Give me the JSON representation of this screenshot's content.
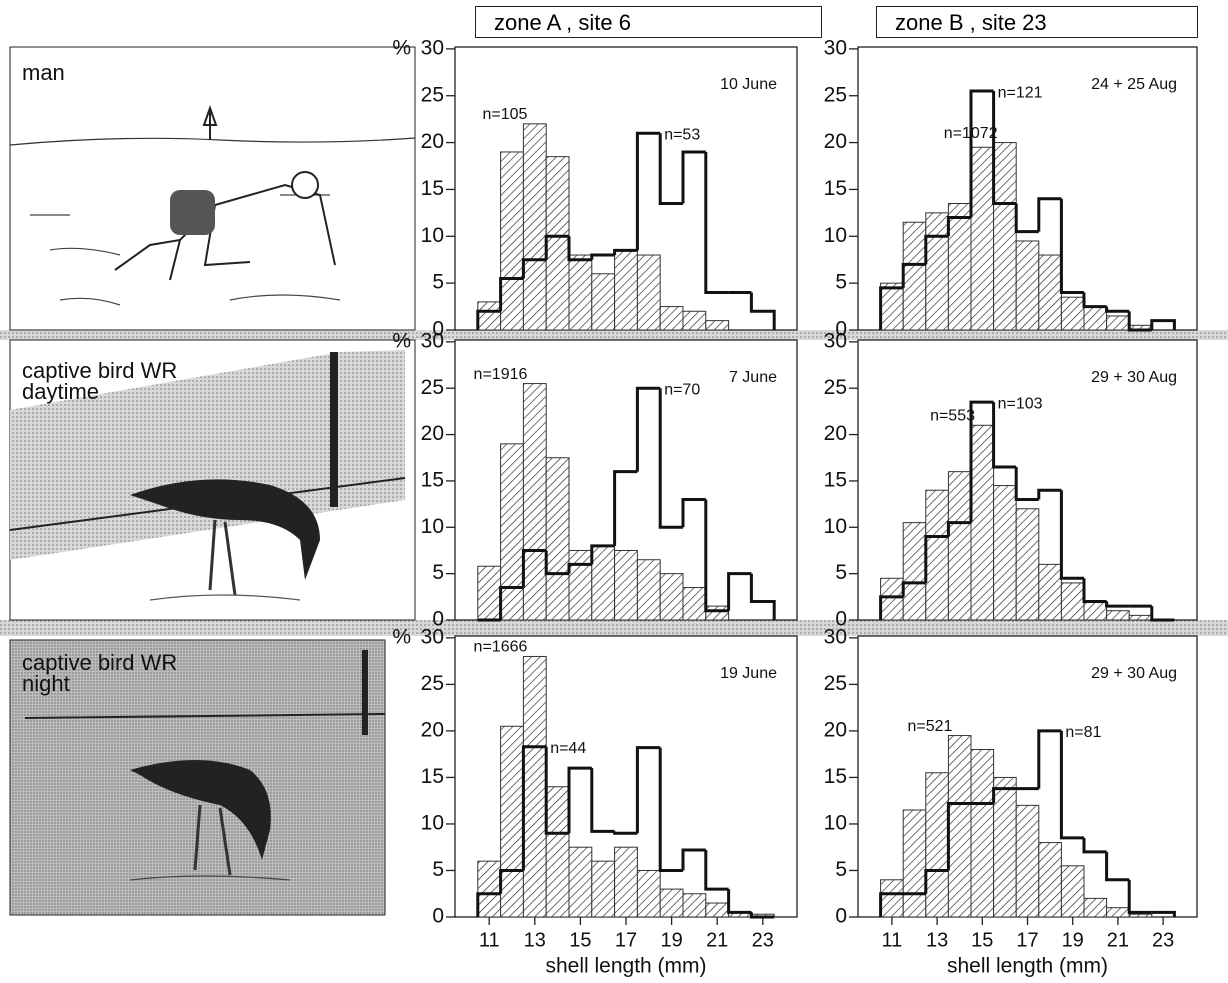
{
  "headers": [
    "zone A , site 6",
    "zone B , site 23"
  ],
  "rows": [
    "man",
    "captive bird WR daytime",
    "captive bird WR night"
  ],
  "chart_data": [
    {
      "type": "histogram",
      "annotation": "10 June",
      "ylabel": "%",
      "bins": [
        10.5,
        11.5,
        12.5,
        13.5,
        14.5,
        15.5,
        16.5,
        17.5,
        18.5,
        19.5,
        20.5,
        21.5,
        22.5,
        23.5
      ],
      "series": [
        {
          "name": "n=105",
          "hatch": true,
          "values": [
            3,
            19,
            22,
            18.5,
            8,
            6,
            8.5,
            8,
            2.5,
            2,
            1,
            0,
            0
          ]
        },
        {
          "name": "n=53",
          "hatch": false,
          "values": [
            2,
            5.5,
            7.5,
            10,
            7.5,
            8,
            8.5,
            21,
            13.5,
            19,
            4,
            4,
            2
          ]
        }
      ],
      "xlim": [
        9.5,
        24.5
      ],
      "ylim": [
        0,
        30.2
      ],
      "yticks": [
        0,
        5,
        10,
        15,
        20,
        25,
        30
      ]
    },
    {
      "type": "histogram",
      "annotation": "24 + 25 Aug",
      "bins": [
        10.5,
        11.5,
        12.5,
        13.5,
        14.5,
        15.5,
        16.5,
        17.5,
        18.5,
        19.5,
        20.5,
        21.5,
        22.5,
        23.5
      ],
      "series": [
        {
          "name": "n=1072",
          "hatch": true,
          "values": [
            5,
            11.5,
            12.5,
            13.5,
            19.5,
            20,
            9.5,
            8,
            3.5,
            2.5,
            1.5,
            0.5,
            0
          ]
        },
        {
          "name": "n=121",
          "hatch": false,
          "values": [
            4.5,
            7,
            10,
            12,
            25.5,
            13.5,
            10.5,
            14,
            4,
            2.5,
            2,
            0,
            1
          ]
        }
      ],
      "xlim": [
        9.5,
        24.5
      ],
      "ylim": [
        0,
        30.2
      ],
      "yticks": [
        0,
        5,
        10,
        15,
        20,
        25,
        30
      ]
    },
    {
      "type": "histogram",
      "annotation": "7 June",
      "ylabel": "%",
      "bins": [
        10.5,
        11.5,
        12.5,
        13.5,
        14.5,
        15.5,
        16.5,
        17.5,
        18.5,
        19.5,
        20.5,
        21.5,
        22.5,
        23.5
      ],
      "series": [
        {
          "name": "n=1916",
          "hatch": true,
          "values": [
            5.8,
            19,
            25.5,
            17.5,
            7.5,
            8,
            7.5,
            6.5,
            5,
            3.5,
            1.5,
            0,
            0
          ]
        },
        {
          "name": "n=70",
          "hatch": false,
          "values": [
            0,
            3.5,
            7.5,
            5,
            6,
            8,
            16,
            25,
            10,
            13,
            1,
            5,
            2
          ]
        }
      ],
      "xlim": [
        9.5,
        24.5
      ],
      "ylim": [
        0,
        30.2
      ],
      "yticks": [
        0,
        5,
        10,
        15,
        20,
        25,
        30
      ]
    },
    {
      "type": "histogram",
      "annotation": "29 + 30 Aug",
      "bins": [
        10.5,
        11.5,
        12.5,
        13.5,
        14.5,
        15.5,
        16.5,
        17.5,
        18.5,
        19.5,
        20.5,
        21.5,
        22.5,
        23.5
      ],
      "series": [
        {
          "name": "n=553",
          "hatch": true,
          "values": [
            4.5,
            10.5,
            14,
            16,
            21,
            14.5,
            12,
            6,
            4,
            2,
            1,
            0.5,
            0
          ]
        },
        {
          "name": "n=103",
          "hatch": false,
          "values": [
            2.5,
            4,
            9,
            10.5,
            23.5,
            16.5,
            13,
            14,
            4.5,
            2,
            1.5,
            1.5,
            0
          ]
        }
      ],
      "xlim": [
        9.5,
        24.5
      ],
      "ylim": [
        0,
        30.2
      ],
      "yticks": [
        0,
        5,
        10,
        15,
        20,
        25,
        30
      ]
    },
    {
      "type": "histogram",
      "annotation": "19 June",
      "ylabel": "%",
      "bins": [
        10.5,
        11.5,
        12.5,
        13.5,
        14.5,
        15.5,
        16.5,
        17.5,
        18.5,
        19.5,
        20.5,
        21.5,
        22.5,
        23.5
      ],
      "series": [
        {
          "name": "n=1666",
          "hatch": true,
          "values": [
            6,
            20.5,
            28,
            14,
            7.5,
            6,
            7.5,
            5,
            3,
            2.5,
            1.5,
            0.5,
            0.3
          ]
        },
        {
          "name": "n=44",
          "hatch": false,
          "values": [
            2.5,
            5,
            18.3,
            9,
            16,
            9.2,
            9,
            18.2,
            5,
            7.2,
            3,
            0.5,
            0
          ]
        }
      ],
      "xlim": [
        9.5,
        24.5
      ],
      "ylim": [
        0,
        30.2
      ],
      "yticks": [
        0,
        5,
        10,
        15,
        20,
        25,
        30
      ],
      "xticks": [
        11,
        13,
        15,
        17,
        19,
        21,
        23
      ],
      "xlabel": "shell length (mm)"
    },
    {
      "type": "histogram",
      "annotation": "29 + 30 Aug",
      "bins": [
        10.5,
        11.5,
        12.5,
        13.5,
        14.5,
        15.5,
        16.5,
        17.5,
        18.5,
        19.5,
        20.5,
        21.5,
        22.5,
        23.5
      ],
      "series": [
        {
          "name": "n=521",
          "hatch": true,
          "values": [
            4,
            11.5,
            15.5,
            19.5,
            18,
            15,
            12,
            8,
            5.5,
            2,
            1,
            0.3,
            0
          ]
        },
        {
          "name": "n=81",
          "hatch": false,
          "values": [
            2.5,
            2.5,
            5,
            12.2,
            12.2,
            13.8,
            13.8,
            20,
            8.5,
            7,
            4,
            0.5,
            0.5
          ]
        }
      ],
      "xlim": [
        9.5,
        24.5
      ],
      "ylim": [
        0,
        30.2
      ],
      "yticks": [
        0,
        5,
        10,
        15,
        20,
        25,
        30
      ],
      "xticks": [
        11,
        13,
        15,
        17,
        19,
        21,
        23
      ],
      "xlabel": "shell length (mm)"
    }
  ]
}
